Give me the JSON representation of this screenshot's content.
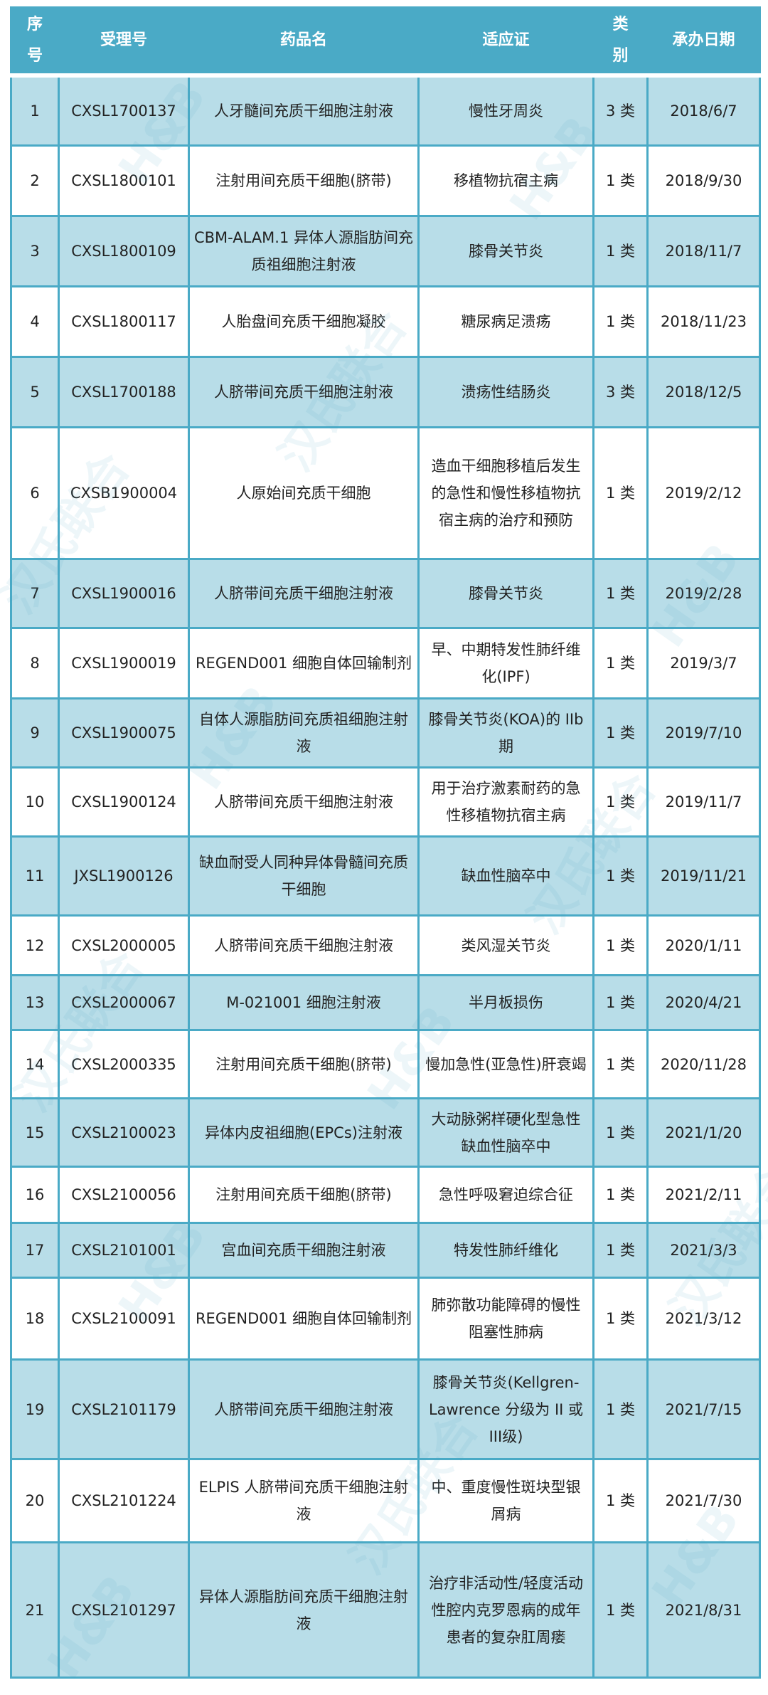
{
  "watermark": {
    "logo_text": "H&B",
    "brand_text": "汉氏联合"
  },
  "colors": {
    "header": "#4aaac6",
    "row_alt": "#b8dde8",
    "border": "#4aaac6"
  },
  "table": {
    "headers": [
      "序号",
      "受理号",
      "药品名",
      "适应证",
      "类别",
      "承办日期"
    ],
    "rows": [
      [
        "1",
        "CXSL1700137",
        "人牙髓间充质干细胞注射液",
        "慢性牙周炎",
        "3 类",
        "2018/6/7"
      ],
      [
        "2",
        "CXSL1800101",
        "注射用间充质干细胞(脐带)",
        "移植物抗宿主病",
        "1 类",
        "2018/9/30"
      ],
      [
        "3",
        "CXSL1800109",
        "CBM-ALAM.1 异体人源脂肪间充质祖细胞注射液",
        "膝骨关节炎",
        "1 类",
        "2018/11/7"
      ],
      [
        "4",
        "CXSL1800117",
        "人胎盘间充质干细胞凝胶",
        "糖尿病足溃疡",
        "1 类",
        "2018/11/23"
      ],
      [
        "5",
        "CXSL1700188",
        "人脐带间充质干细胞注射液",
        "溃疡性结肠炎",
        "3 类",
        "2018/12/5"
      ],
      [
        "6",
        "CXSB1900004",
        "人原始间充质干细胞",
        "造血干细胞移植后发生的急性和慢性移植物抗宿主病的治疗和预防",
        "1 类",
        "2019/2/12"
      ],
      [
        "7",
        "CXSL1900016",
        "人脐带间充质干细胞注射液",
        "膝骨关节炎",
        "1 类",
        "2019/2/28"
      ],
      [
        "8",
        "CXSL1900019",
        "REGEND001 细胞自体回输制剂",
        "早、中期特发性肺纤维化(IPF)",
        "1 类",
        "2019/3/7"
      ],
      [
        "9",
        "CXSL1900075",
        "自体人源脂肪间充质祖细胞注射液",
        "膝骨关节炎(KOA)的 IIb 期",
        "1 类",
        "2019/7/10"
      ],
      [
        "10",
        "CXSL1900124",
        "人脐带间充质干细胞注射液",
        "用于治疗激素耐药的急性移植物抗宿主病",
        "1 类",
        "2019/11/7"
      ],
      [
        "11",
        "JXSL1900126",
        "缺血耐受人同种异体骨髓间充质干细胞",
        "缺血性脑卒中",
        "1 类",
        "2019/11/21"
      ],
      [
        "12",
        "CXSL2000005",
        "人脐带间充质干细胞注射液",
        "类风湿关节炎",
        "1 类",
        "2020/1/11"
      ],
      [
        "13",
        "CXSL2000067",
        "M-021001 细胞注射液",
        "半月板损伤",
        "1 类",
        "2020/4/21"
      ],
      [
        "14",
        "CXSL2000335",
        "注射用间充质干细胞(脐带)",
        "慢加急性(亚急性)肝衰竭",
        "1 类",
        "2020/11/28"
      ],
      [
        "15",
        "CXSL2100023",
        "异体内皮祖细胞(EPCs)注射液",
        "大动脉粥样硬化型急性缺血性脑卒中",
        "1 类",
        "2021/1/20"
      ],
      [
        "16",
        "CXSL2100056",
        "注射用间充质干细胞(脐带)",
        "急性呼吸窘迫综合征",
        "1 类",
        "2021/2/11"
      ],
      [
        "17",
        "CXSL2101001",
        "宫血间充质干细胞注射液",
        "特发性肺纤维化",
        "1 类",
        "2021/3/3"
      ],
      [
        "18",
        "CXSL2100091",
        "REGEND001 细胞自体回输制剂",
        "肺弥散功能障碍的慢性阻塞性肺病",
        "1 类",
        "2021/3/12"
      ],
      [
        "19",
        "CXSL2101179",
        "人脐带间充质干细胞注射液",
        "膝骨关节炎(Kellgren-Lawrence 分级为 II 或III级)",
        "1 类",
        "2021/7/15"
      ],
      [
        "20",
        "CXSL2101224",
        "ELPIS 人脐带间充质干细胞注射液",
        "中、重度慢性斑块型银屑病",
        "1 类",
        "2021/7/30"
      ],
      [
        "21",
        "CXSL2101297",
        "异体人源脂肪间充质干细胞注射液",
        "治疗非活动性/轻度活动性腔内克罗恩病的成年患者的复杂肛周瘘",
        "1 类",
        "2021/8/31"
      ]
    ]
  }
}
